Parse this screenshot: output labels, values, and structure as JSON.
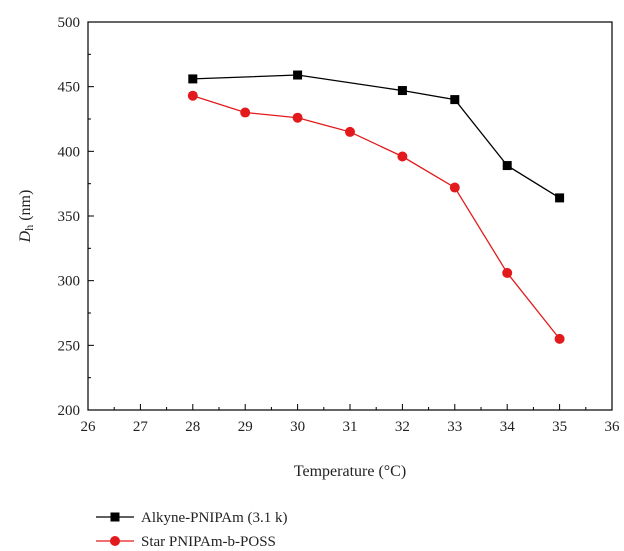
{
  "chart_data": {
    "type": "line",
    "xlabel": "Temperature (°C)",
    "ylabel_main": "D",
    "ylabel_sub": "h",
    "ylabel_unit": " (nm)",
    "xlim": [
      26,
      36
    ],
    "ylim": [
      200,
      500
    ],
    "x_ticks": [
      {
        "value": 26,
        "label": "26"
      },
      {
        "value": 27,
        "label": "27"
      },
      {
        "value": 28,
        "label": "28"
      },
      {
        "value": 29,
        "label": "29"
      },
      {
        "value": 30,
        "label": "30"
      },
      {
        "value": 31,
        "label": "31"
      },
      {
        "value": 32,
        "label": "32"
      },
      {
        "value": 33,
        "label": "33"
      },
      {
        "value": 34,
        "label": "34"
      },
      {
        "value": 35,
        "label": "35"
      },
      {
        "value": 36,
        "label": "36"
      }
    ],
    "y_ticks": [
      200,
      250,
      300,
      350,
      400,
      450,
      500
    ],
    "grid": false,
    "legend_position": "bottom",
    "series": [
      {
        "name": "Alkyne-PNIPAm (3.1 k)",
        "color": "#000000",
        "marker": "square",
        "x": [
          28,
          30,
          32,
          33,
          34,
          35
        ],
        "y": [
          456,
          459,
          447,
          440,
          389,
          364
        ]
      },
      {
        "name": "Star PNIPAm-b-POSS",
        "color": "#e31a1c",
        "marker": "circle",
        "x": [
          28,
          29,
          30,
          31,
          32,
          33,
          34,
          35
        ],
        "y": [
          443,
          430,
          426,
          415,
          396,
          372,
          306,
          255
        ]
      }
    ]
  }
}
